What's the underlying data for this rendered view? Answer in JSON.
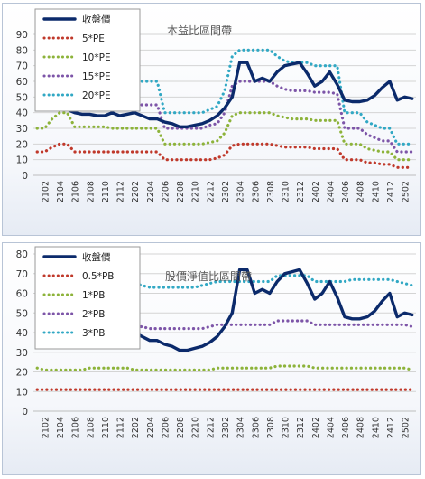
{
  "chart_data": [
    {
      "type": "line",
      "title": "本益比區間帶",
      "ylim": [
        0,
        90
      ],
      "yticks": [
        0,
        10,
        20,
        30,
        40,
        50,
        60,
        70,
        80,
        90
      ],
      "x": [
        "2101",
        "2102",
        "2103",
        "2104",
        "2105",
        "2106",
        "2107",
        "2108",
        "2109",
        "2110",
        "2111",
        "2112",
        "2201",
        "2202",
        "2203",
        "2204",
        "2205",
        "2206",
        "2207",
        "2208",
        "2209",
        "2210",
        "2211",
        "2212",
        "2301",
        "2302",
        "2303",
        "2304",
        "2305",
        "2306",
        "2307",
        "2308",
        "2309",
        "2310",
        "2311",
        "2312",
        "2401",
        "2402",
        "2403",
        "2404",
        "2405",
        "2406",
        "2407",
        "2408",
        "2409",
        "2410",
        "2411",
        "2412",
        "2501",
        "2502",
        "2503"
      ],
      "xtick_labels": [
        "2102",
        "2104",
        "2106",
        "2108",
        "2110",
        "2112",
        "2202",
        "2204",
        "2206",
        "2208",
        "2210",
        "2212",
        "2302",
        "2304",
        "2306",
        "2308",
        "2310",
        "2312",
        "2402",
        "2404",
        "2406",
        "2408",
        "2410",
        "2412",
        "2502"
      ],
      "grid": true,
      "legend_position": "top-left",
      "series": [
        {
          "name": "收盤價",
          "style": "solid",
          "color": "#0b2a6b",
          "values": [
            45,
            44,
            43,
            42,
            42,
            40,
            39,
            39,
            38,
            38,
            40,
            38,
            39,
            40,
            38,
            36,
            36,
            34,
            33,
            31,
            31,
            32,
            33,
            35,
            38,
            43,
            50,
            72,
            72,
            60,
            62,
            60,
            66,
            70,
            71,
            72,
            65,
            57,
            60,
            66,
            58,
            48,
            47,
            47,
            48,
            51,
            56,
            60,
            48,
            50,
            49
          ]
        },
        {
          "name": "5*PE",
          "style": "dotted",
          "color": "#c0392b",
          "values": [
            15,
            15,
            18,
            20,
            20,
            15,
            15,
            15,
            15,
            15,
            15,
            15,
            15,
            15,
            15,
            15,
            15,
            10,
            10,
            10,
            10,
            10,
            10,
            10,
            11,
            13,
            19,
            20,
            20,
            20,
            20,
            20,
            19,
            18,
            18,
            18,
            18,
            17,
            17,
            17,
            17,
            10,
            10,
            10,
            8,
            8,
            7,
            7,
            5,
            5,
            5
          ]
        },
        {
          "name": "10*PE",
          "style": "dotted",
          "color": "#8db33a",
          "values": [
            30,
            30,
            36,
            40,
            40,
            31,
            31,
            31,
            31,
            31,
            30,
            30,
            30,
            30,
            30,
            30,
            30,
            20,
            20,
            20,
            20,
            20,
            20,
            21,
            22,
            27,
            38,
            40,
            40,
            40,
            40,
            40,
            38,
            37,
            36,
            36,
            36,
            35,
            35,
            35,
            35,
            20,
            20,
            20,
            17,
            16,
            15,
            15,
            10,
            10,
            10
          ]
        },
        {
          "name": "15*PE",
          "style": "dotted",
          "color": "#7d55a8",
          "values": [
            45,
            45,
            46,
            47,
            47,
            46,
            46,
            46,
            46,
            46,
            46,
            45,
            45,
            45,
            45,
            45,
            45,
            30,
            30,
            30,
            30,
            30,
            30,
            32,
            33,
            40,
            57,
            60,
            60,
            60,
            60,
            60,
            57,
            55,
            54,
            54,
            54,
            53,
            53,
            53,
            52,
            30,
            30,
            30,
            26,
            24,
            22,
            22,
            15,
            15,
            15
          ]
        },
        {
          "name": "20*PE",
          "style": "dotted",
          "color": "#31a8c4",
          "values": [
            45,
            44,
            55,
            60,
            60,
            60,
            60,
            60,
            60,
            60,
            60,
            60,
            60,
            60,
            60,
            60,
            60,
            40,
            40,
            40,
            40,
            40,
            40,
            42,
            44,
            54,
            76,
            80,
            80,
            80,
            80,
            80,
            76,
            73,
            72,
            72,
            72,
            70,
            70,
            70,
            70,
            40,
            40,
            40,
            34,
            32,
            30,
            30,
            20,
            20,
            20
          ]
        }
      ]
    },
    {
      "type": "line",
      "title": "股價淨值比區間帶",
      "ylim": [
        0,
        80
      ],
      "yticks": [
        0,
        10,
        20,
        30,
        40,
        50,
        60,
        70,
        80
      ],
      "x": [
        "2101",
        "2102",
        "2103",
        "2104",
        "2105",
        "2106",
        "2107",
        "2108",
        "2109",
        "2110",
        "2111",
        "2112",
        "2201",
        "2202",
        "2203",
        "2204",
        "2205",
        "2206",
        "2207",
        "2208",
        "2209",
        "2210",
        "2211",
        "2212",
        "2301",
        "2302",
        "2303",
        "2304",
        "2305",
        "2306",
        "2307",
        "2308",
        "2309",
        "2310",
        "2311",
        "2312",
        "2401",
        "2402",
        "2403",
        "2404",
        "2405",
        "2406",
        "2407",
        "2408",
        "2409",
        "2410",
        "2411",
        "2412",
        "2501",
        "2502",
        "2503"
      ],
      "xtick_labels": [
        "2102",
        "2104",
        "2106",
        "2108",
        "2110",
        "2112",
        "2202",
        "2204",
        "2206",
        "2208",
        "2210",
        "2212",
        "2302",
        "2304",
        "2306",
        "2308",
        "2310",
        "2312",
        "2402",
        "2404",
        "2406",
        "2408",
        "2410",
        "2412",
        "2502"
      ],
      "grid": true,
      "legend_position": "top-left",
      "series": [
        {
          "name": "收盤價",
          "style": "solid",
          "color": "#0b2a6b",
          "values": [
            45,
            44,
            43,
            42,
            42,
            40,
            39,
            39,
            38,
            38,
            40,
            38,
            39,
            40,
            38,
            36,
            36,
            34,
            33,
            31,
            31,
            32,
            33,
            35,
            38,
            43,
            50,
            72,
            72,
            60,
            62,
            60,
            66,
            70,
            71,
            72,
            65,
            57,
            60,
            66,
            58,
            48,
            47,
            47,
            48,
            51,
            56,
            60,
            48,
            50,
            49
          ]
        },
        {
          "name": "0.5*PB",
          "style": "dotted",
          "color": "#c0392b",
          "values": [
            11,
            11,
            11,
            11,
            11,
            11,
            11,
            11,
            11,
            11,
            11,
            11,
            11,
            11,
            11,
            11,
            11,
            11,
            11,
            11,
            11,
            11,
            11,
            11,
            11,
            11,
            11,
            11,
            11,
            11,
            11,
            11,
            11,
            11,
            11,
            11,
            11,
            11,
            11,
            11,
            11,
            11,
            11,
            11,
            11,
            11,
            11,
            11,
            11,
            11,
            11
          ]
        },
        {
          "name": "1*PB",
          "style": "dotted",
          "color": "#8db33a",
          "values": [
            22,
            21,
            21,
            21,
            21,
            21,
            21,
            22,
            22,
            22,
            22,
            22,
            22,
            21,
            21,
            21,
            21,
            21,
            21,
            21,
            21,
            21,
            21,
            21,
            22,
            22,
            22,
            22,
            22,
            22,
            22,
            22,
            23,
            23,
            23,
            23,
            23,
            22,
            22,
            22,
            22,
            22,
            22,
            22,
            22,
            22,
            22,
            22,
            22,
            22,
            21
          ]
        },
        {
          "name": "2*PB",
          "style": "dotted",
          "color": "#7d55a8",
          "values": [
            44,
            43,
            42,
            42,
            42,
            43,
            43,
            44,
            44,
            44,
            44,
            44,
            44,
            43,
            43,
            42,
            42,
            42,
            42,
            42,
            42,
            42,
            42,
            43,
            44,
            44,
            44,
            44,
            44,
            44,
            44,
            44,
            46,
            46,
            46,
            46,
            46,
            44,
            44,
            44,
            44,
            44,
            44,
            44,
            44,
            44,
            44,
            44,
            44,
            44,
            43
          ]
        },
        {
          "name": "3*PB",
          "style": "dotted",
          "color": "#31a8c4",
          "values": [
            66,
            64,
            63,
            63,
            63,
            64,
            65,
            66,
            66,
            66,
            66,
            66,
            66,
            65,
            64,
            63,
            63,
            63,
            63,
            63,
            63,
            63,
            64,
            65,
            66,
            66,
            66,
            66,
            66,
            66,
            66,
            66,
            69,
            69,
            69,
            69,
            69,
            66,
            66,
            66,
            66,
            66,
            67,
            67,
            67,
            67,
            67,
            67,
            66,
            65,
            64
          ]
        }
      ]
    }
  ]
}
